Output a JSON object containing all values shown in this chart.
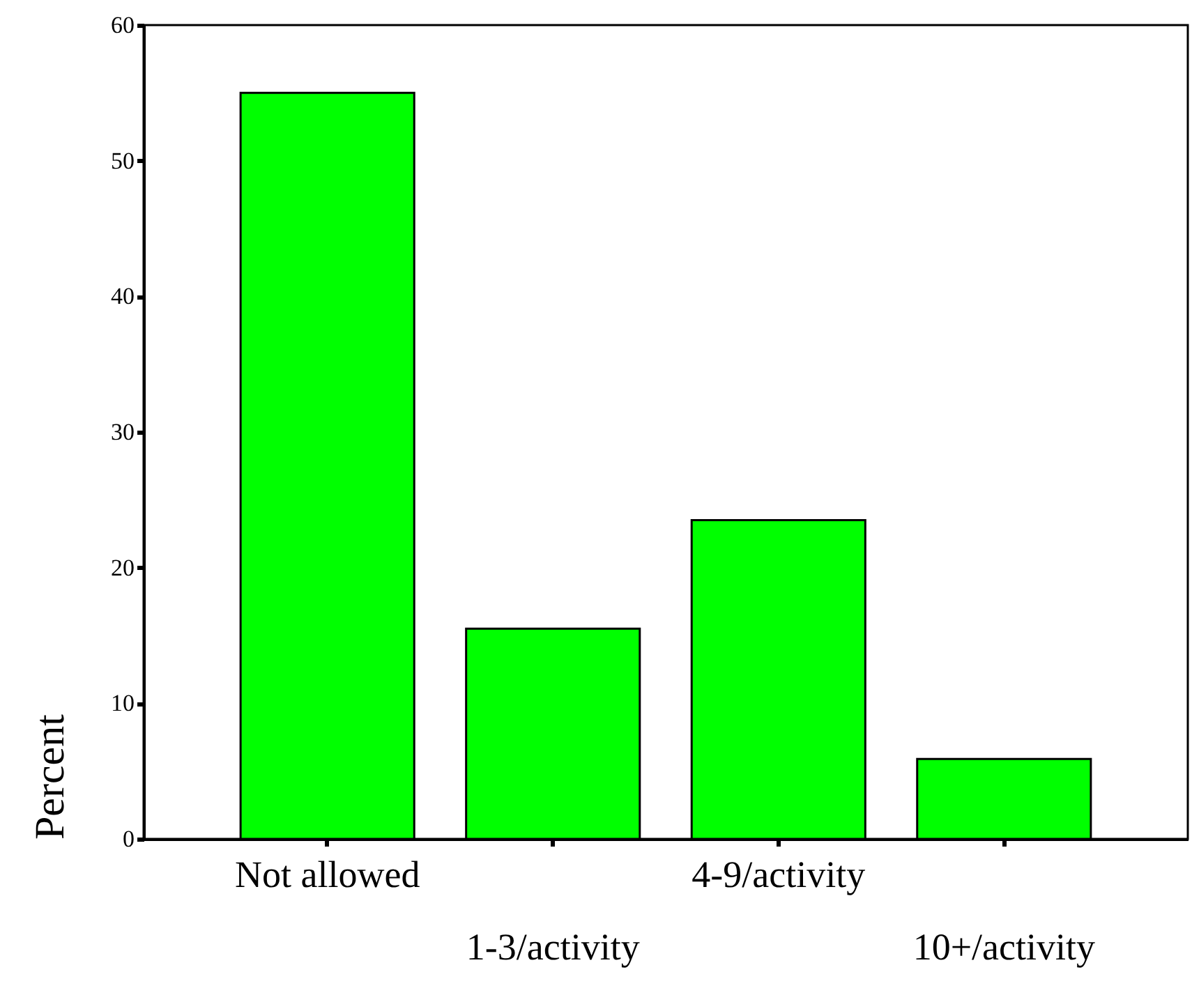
{
  "chart_data": {
    "type": "bar",
    "ylabel": "Percent",
    "categories": [
      "Not allowed",
      "1-3/activity",
      "4-9/activity",
      "10+/activity"
    ],
    "values": [
      55,
      15.5,
      23.5,
      5.9
    ],
    "color": "#00ff00",
    "ylim": [
      0,
      60
    ],
    "yticks": [
      0,
      10,
      20,
      30,
      40,
      50,
      60
    ],
    "grid": false
  }
}
